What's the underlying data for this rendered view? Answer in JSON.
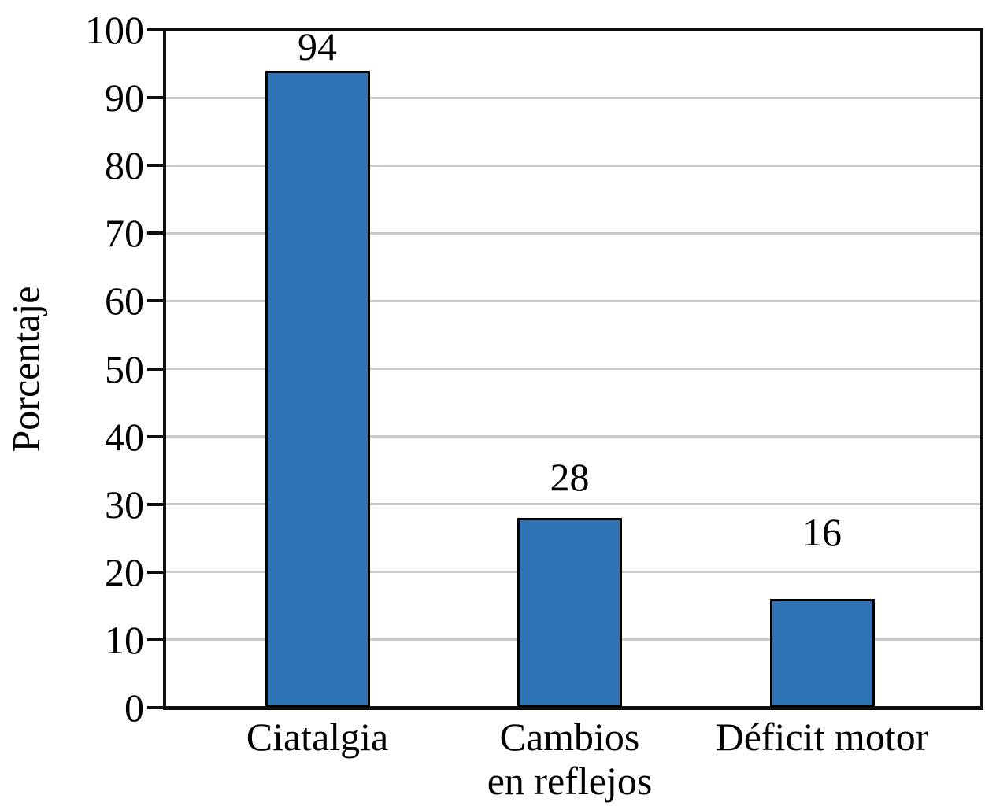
{
  "chart_data": {
    "type": "bar",
    "title": "",
    "categories": [
      "Ciatalgia",
      "Cambios en reflejos",
      "Déficit motor"
    ],
    "category_label_lines": [
      [
        "Ciatalgia"
      ],
      [
        "Cambios",
        "en reflejos"
      ],
      [
        "Déficit motor"
      ]
    ],
    "values": [
      94,
      28,
      16
    ],
    "data_labels": [
      "94",
      "28",
      "16"
    ],
    "xlabel": "",
    "ylabel": "Porcentaje",
    "ylim": [
      0,
      100
    ],
    "yticks": [
      0,
      10,
      20,
      30,
      40,
      50,
      60,
      70,
      80,
      90,
      100
    ],
    "grid": true,
    "legend": false,
    "colors": {
      "bar_fill": "#2f74b5",
      "bar_border": "#000000",
      "gridline": "#c9c9cf",
      "axis": "#0d0d0d",
      "text": "#000000",
      "background": "#ffffff"
    }
  }
}
